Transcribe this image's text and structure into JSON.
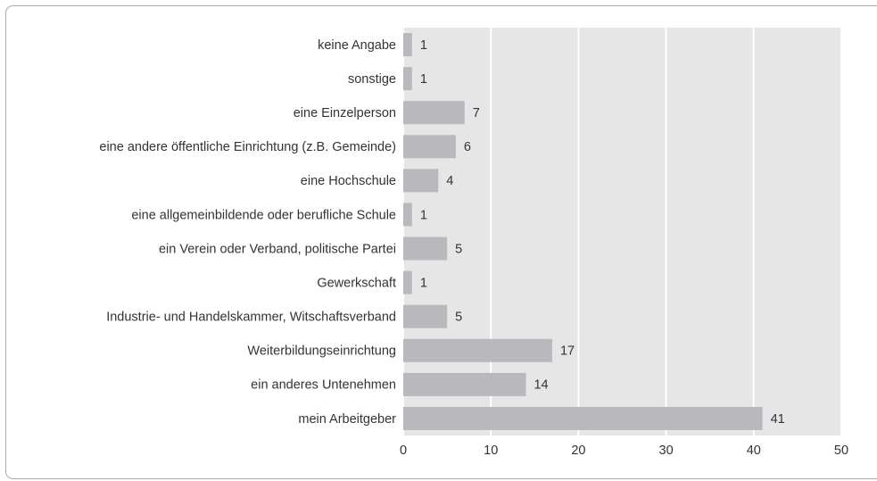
{
  "chart_data": {
    "type": "bar",
    "orientation": "horizontal",
    "categories": [
      "keine Angabe",
      "sonstige",
      "eine Einzelperson",
      "eine andere öffentliche Einrichtung (z.B. Gemeinde)",
      "eine Hochschule",
      "eine allgemeinbildende oder berufliche Schule",
      "ein Verein oder Verband, politische Partei",
      "Gewerkschaft",
      "Industrie- und Handelskammer, Witschaftsverband",
      "Weiterbildungseinrichtung",
      "ein anderes Untenehmen",
      "mein Arbeitgeber"
    ],
    "values": [
      1,
      1,
      7,
      6,
      4,
      1,
      5,
      1,
      5,
      17,
      14,
      41
    ],
    "color": "#b9b9bd",
    "xlim": [
      0,
      50
    ],
    "xticks": [
      0,
      10,
      20,
      30,
      40,
      50
    ],
    "grid": true
  }
}
